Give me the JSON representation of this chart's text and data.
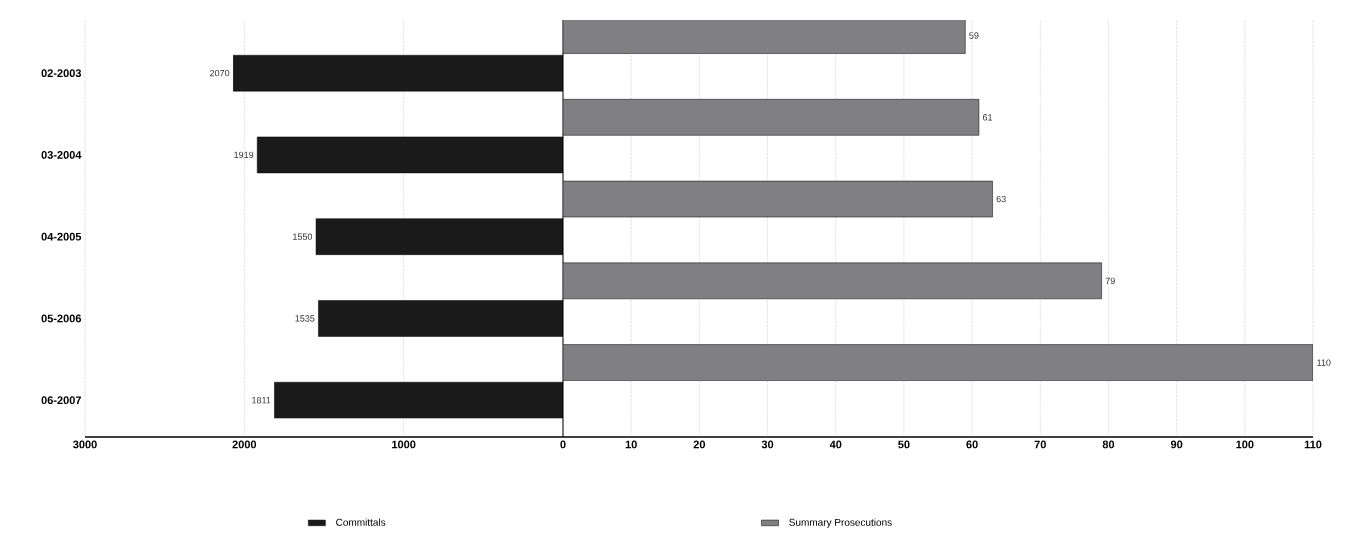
{
  "chart_data": [
    {
      "type": "bar",
      "orientation": "horizontal",
      "categories": [
        "02-2003",
        "03-2004",
        "04-2005",
        "05-2006",
        "06-2007"
      ],
      "series": [
        {
          "name": "Committals",
          "color": "#1a1a1a",
          "values": [
            2070,
            1919,
            1550,
            1535,
            1811
          ]
        }
      ],
      "xlim": [
        3000,
        0
      ],
      "xticks": [
        0,
        1000,
        2000,
        3000
      ],
      "grid": "x",
      "legend": "bottom",
      "data_labels": true
    },
    {
      "type": "bar",
      "orientation": "horizontal",
      "categories": [
        null,
        null,
        null,
        null,
        null
      ],
      "series": [
        {
          "name": "Summary Prosecutions",
          "color": "#808083",
          "values": [
            59,
            61,
            63,
            79,
            110
          ]
        }
      ],
      "xlim": [
        0,
        110
      ],
      "xticks": [
        10,
        20,
        30,
        40,
        50,
        60,
        70,
        80,
        90,
        100,
        110
      ],
      "grid": "x",
      "legend": "bottom",
      "data_labels": true
    }
  ]
}
